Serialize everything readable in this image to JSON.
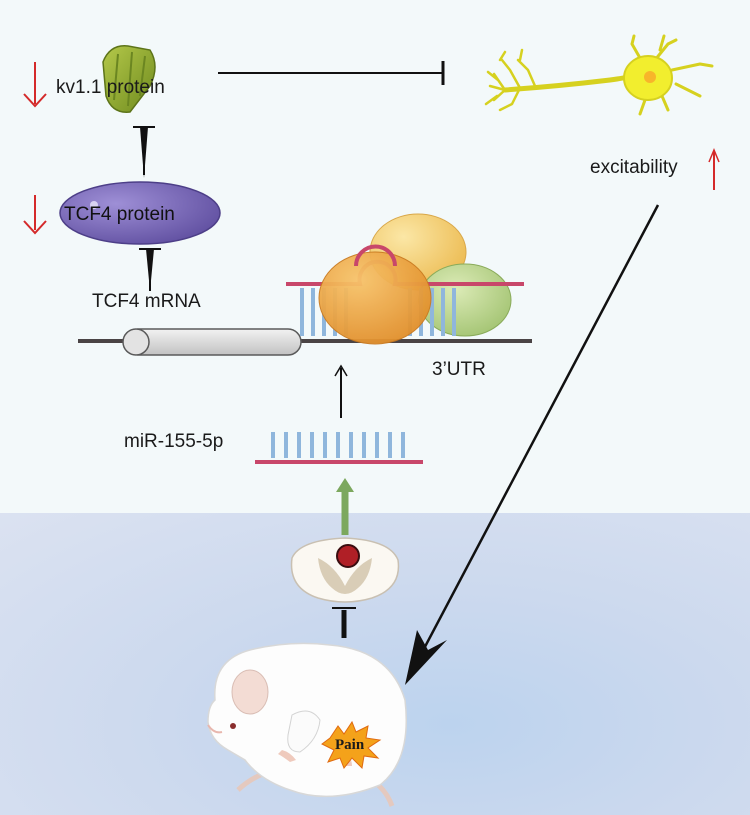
{
  "labels": {
    "kv11_protein": "kv1.1 protein",
    "tcf4_protein": "TCF4 protein",
    "tcf4_mrna": "TCF4 mRNA",
    "utr": "3’UTR",
    "mirna": "miR-155-5p",
    "excitability": "excitability",
    "pain": "Pain"
  },
  "colors": {
    "down_arrow": "#d42a2a",
    "up_arrow": "#d42a2a",
    "kv_protein": "#8ea82c",
    "tcf4_protein": "#7a68b5",
    "rna_strand": "#c8476a",
    "base_pair": "#8fb6dc",
    "green_arrow": "#7ca85e",
    "neuron": "#f2ee2e"
  },
  "icons": {
    "kv": "kv1.1-channel-icon",
    "neuron": "neuron-icon",
    "ribosome": "ribosome-complex-icon",
    "spinal_cord": "spinal-cord-section-icon",
    "mouse": "mouse-icon",
    "pain": "pain-burst-icon"
  }
}
